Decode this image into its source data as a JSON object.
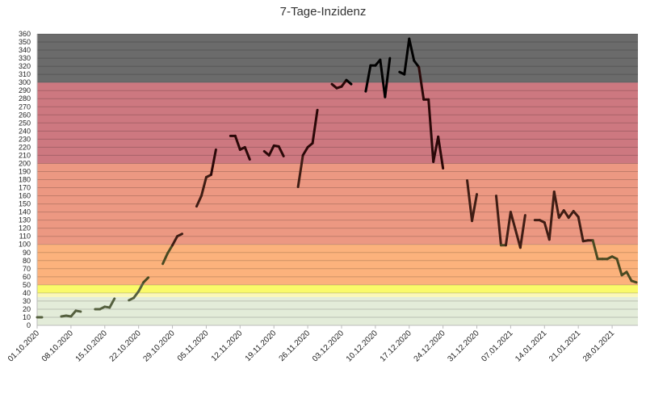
{
  "chart_data": {
    "type": "line",
    "title": "7-Tage-Inzidenz",
    "xlabel": "",
    "ylabel": "",
    "ylim": [
      0,
      360
    ],
    "ytick_step": 10,
    "grid": true,
    "xrange": [
      "2020-10-01",
      "2021-02-01"
    ],
    "x_ticks": [
      "01.10.2020",
      "08.10.2020",
      "15.10.2020",
      "22.10.2020",
      "29.10.2020",
      "05.11.2020",
      "12.11.2020",
      "19.11.2020",
      "26.11.2020",
      "03.12.2020",
      "10.12.2020",
      "17.12.2020",
      "24.12.2020",
      "31.12.2020",
      "07.01.2021",
      "14.01.2021",
      "21.01.2021",
      "28.01.2021"
    ],
    "bands": [
      {
        "from": 0,
        "to": 35,
        "color": "#e3ecd9"
      },
      {
        "from": 35,
        "to": 40,
        "color": "#fbf7b8"
      },
      {
        "from": 40,
        "to": 50,
        "color": "#fafa6a"
      },
      {
        "from": 50,
        "to": 100,
        "color": "#fcb27c"
      },
      {
        "from": 100,
        "to": 200,
        "color": "#ec9882"
      },
      {
        "from": 200,
        "to": 300,
        "color": "#cd7880"
      },
      {
        "from": 300,
        "to": 360,
        "color": "#6b6b6b"
      }
    ],
    "series": [
      {
        "color_scale": [
          {
            "v": 0,
            "color": "#55603f"
          },
          {
            "v": 50,
            "color": "#4a4a22"
          },
          {
            "v": 100,
            "color": "#3f1d14"
          },
          {
            "v": 200,
            "color": "#2a0808"
          },
          {
            "v": 300,
            "color": "#000000"
          }
        ],
        "segments": [
          [
            [
              "2020-10-01",
              10
            ],
            [
              "2020-10-02",
              10
            ]
          ],
          [
            [
              "2020-10-06",
              11
            ],
            [
              "2020-10-07",
              12
            ],
            [
              "2020-10-08",
              11
            ],
            [
              "2020-10-09",
              18
            ],
            [
              "2020-10-10",
              17
            ]
          ],
          [
            [
              "2020-10-13",
              20
            ],
            [
              "2020-10-14",
              20
            ],
            [
              "2020-10-15",
              23
            ],
            [
              "2020-10-16",
              22
            ],
            [
              "2020-10-17",
              33
            ]
          ],
          [
            [
              "2020-10-20",
              31
            ],
            [
              "2020-10-21",
              34
            ],
            [
              "2020-10-22",
              42
            ],
            [
              "2020-10-23",
              53
            ],
            [
              "2020-10-24",
              59
            ]
          ],
          [
            [
              "2020-10-27",
              76
            ],
            [
              "2020-10-28",
              89
            ],
            [
              "2020-10-29",
              99
            ],
            [
              "2020-10-30",
              110
            ],
            [
              "2020-10-31",
              113
            ]
          ],
          [
            [
              "2020-11-03",
              147
            ],
            [
              "2020-11-04",
              160
            ],
            [
              "2020-11-05",
              183
            ],
            [
              "2020-11-06",
              186
            ],
            [
              "2020-11-07",
              217
            ]
          ],
          [
            [
              "2020-11-10",
              234
            ],
            [
              "2020-11-11",
              234
            ],
            [
              "2020-11-12",
              217
            ],
            [
              "2020-11-13",
              220
            ],
            [
              "2020-11-14",
              205
            ]
          ],
          [
            [
              "2020-11-17",
              215
            ],
            [
              "2020-11-18",
              210
            ],
            [
              "2020-11-19",
              222
            ],
            [
              "2020-11-20",
              221
            ],
            [
              "2020-11-21",
              209
            ]
          ],
          [
            [
              "2020-11-24",
              171
            ],
            [
              "2020-11-25",
              210
            ],
            [
              "2020-11-26",
              220
            ],
            [
              "2020-11-27",
              225
            ],
            [
              "2020-11-28",
              266
            ]
          ],
          [
            [
              "2020-12-01",
              298
            ],
            [
              "2020-12-02",
              293
            ],
            [
              "2020-12-03",
              295
            ],
            [
              "2020-12-04",
              303
            ],
            [
              "2020-12-05",
              298
            ]
          ],
          [
            [
              "2020-12-08",
              289
            ],
            [
              "2020-12-09",
              321
            ],
            [
              "2020-12-10",
              321
            ],
            [
              "2020-12-11",
              328
            ],
            [
              "2020-12-12",
              282
            ],
            [
              "2020-12-13",
              330
            ]
          ],
          [
            [
              "2020-12-15",
              313
            ],
            [
              "2020-12-16",
              310
            ],
            [
              "2020-12-17",
              354
            ],
            [
              "2020-12-18",
              327
            ],
            [
              "2020-12-19",
              319
            ],
            [
              "2020-12-20",
              279
            ],
            [
              "2020-12-21",
              279
            ],
            [
              "2020-12-22",
              202
            ],
            [
              "2020-12-23",
              233
            ],
            [
              "2020-12-24",
              194
            ]
          ],
          [
            [
              "2020-12-29",
              179
            ],
            [
              "2020-12-30",
              129
            ],
            [
              "2020-12-31",
              162
            ]
          ],
          [
            [
              "2021-01-04",
              160
            ],
            [
              "2021-01-05",
              99
            ],
            [
              "2021-01-06",
              99
            ],
            [
              "2021-01-07",
              140
            ],
            [
              "2021-01-08",
              118
            ],
            [
              "2021-01-09",
              96
            ],
            [
              "2021-01-10",
              136
            ]
          ],
          [
            [
              "2021-01-12",
              130
            ],
            [
              "2021-01-13",
              130
            ],
            [
              "2021-01-14",
              127
            ],
            [
              "2021-01-15",
              106
            ],
            [
              "2021-01-16",
              165
            ],
            [
              "2021-01-17",
              133
            ],
            [
              "2021-01-18",
              142
            ],
            [
              "2021-01-19",
              133
            ],
            [
              "2021-01-20",
              141
            ],
            [
              "2021-01-21",
              134
            ],
            [
              "2021-01-22",
              104
            ],
            [
              "2021-01-23",
              105
            ],
            [
              "2021-01-24",
              105
            ],
            [
              "2021-01-25",
              82
            ],
            [
              "2021-01-26",
              82
            ],
            [
              "2021-01-27",
              82
            ],
            [
              "2021-01-28",
              85
            ],
            [
              "2021-01-29",
              82
            ],
            [
              "2021-01-30",
              62
            ],
            [
              "2021-01-31",
              66
            ],
            [
              "2021-02-01",
              55
            ],
            [
              "2021-02-02",
              53
            ]
          ]
        ]
      }
    ]
  }
}
